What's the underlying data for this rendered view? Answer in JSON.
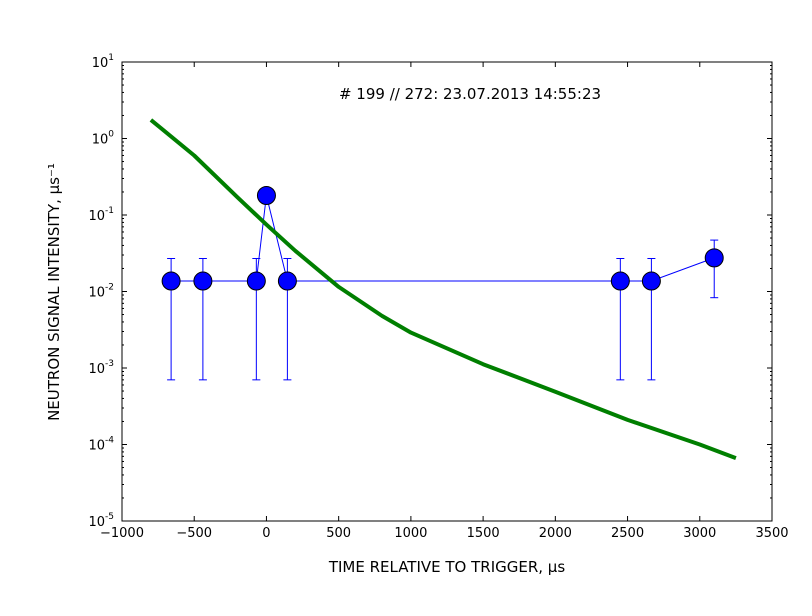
{
  "chart_data": {
    "type": "scatter",
    "title": "",
    "annotation": "# 199 // 272: 23.07.2013 14:55:23",
    "xlabel": "TIME RELATIVE TO TRIGGER, μs",
    "ylabel": "NEUTRON SIGNAL INTENSITY, μs⁻¹",
    "xlim": [
      -1000,
      3500
    ],
    "ylim": [
      1e-05,
      10
    ],
    "yscale": "log",
    "grid": false,
    "legend": "none",
    "x_ticks": [
      -1000,
      -500,
      0,
      500,
      1000,
      1500,
      2000,
      2500,
      3000,
      3500
    ],
    "x_tick_labels": [
      "−1000",
      "−500",
      "0",
      "500",
      "1000",
      "1500",
      "2000",
      "2500",
      "3000",
      "3500"
    ],
    "y_ticks": [
      {
        "value": 1e-05,
        "base": "10",
        "exp": "-5"
      },
      {
        "value": 0.0001,
        "base": "10",
        "exp": "-4"
      },
      {
        "value": 0.001,
        "base": "10",
        "exp": "-3"
      },
      {
        "value": 0.01,
        "base": "10",
        "exp": "-2"
      },
      {
        "value": 0.1,
        "base": "10",
        "exp": "-1"
      },
      {
        "value": 1,
        "base": "10",
        "exp": "0"
      },
      {
        "value": 10,
        "base": "10",
        "exp": "1"
      }
    ],
    "series": [
      {
        "kind": "points",
        "color": "#0000ff",
        "x": [
          -660,
          -440,
          -70,
          0,
          145,
          2450,
          2665,
          3100
        ],
        "y": [
          0.0137,
          0.0137,
          0.0137,
          0.18,
          0.0137,
          0.0137,
          0.0137,
          0.0275
        ],
        "err_low": [
          0.0007,
          0.0007,
          0.0007,
          null,
          0.0007,
          0.0007,
          0.0007,
          0.0083
        ],
        "err_high": [
          0.027,
          0.027,
          0.027,
          null,
          0.027,
          0.027,
          0.027,
          0.047
        ]
      },
      {
        "kind": "curve",
        "color": "#007f00",
        "x": [
          -800,
          -500,
          -200,
          0,
          200,
          500,
          800,
          1000,
          1500,
          2000,
          2500,
          3000,
          3250
        ],
        "y": [
          1.75,
          0.6,
          0.17,
          0.075,
          0.034,
          0.0115,
          0.0048,
          0.0029,
          0.00112,
          0.00049,
          0.00021,
          0.0001,
          6.65e-05
        ]
      }
    ]
  }
}
